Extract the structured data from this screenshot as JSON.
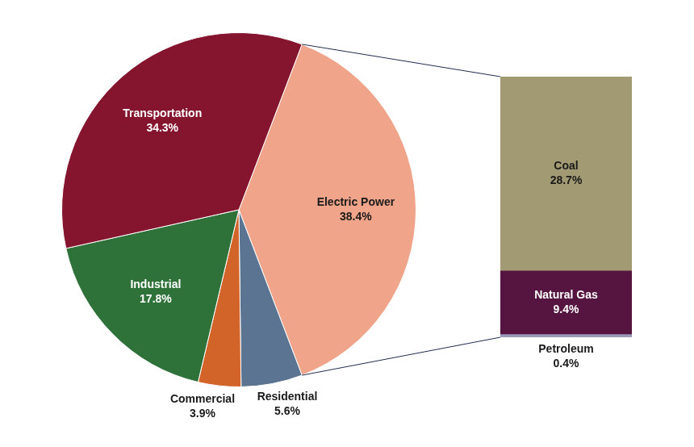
{
  "chart_data": [
    {
      "type": "pie",
      "categories": [
        "Electric Power",
        "Residential",
        "Commercial",
        "Industrial",
        "Transportation"
      ],
      "values": [
        38.4,
        5.6,
        3.9,
        17.8,
        34.3
      ],
      "value_labels": [
        "38.4%",
        "5.6%",
        "3.9%",
        "17.8%",
        "34.3%"
      ],
      "colors": [
        "#f0a48a",
        "#5b7491",
        "#d2642a",
        "#2f7239",
        "#85152e"
      ],
      "data_labels": true
    },
    {
      "type": "bar",
      "stacked": true,
      "series": [
        {
          "name": "Petroleum",
          "color": "#9a98b8",
          "values": [
            0.4
          ],
          "value_labels": [
            "0.4%"
          ]
        },
        {
          "name": "Natural Gas",
          "color": "#551540",
          "values": [
            9.4
          ],
          "value_labels": [
            "9.4%"
          ]
        },
        {
          "name": "Coal",
          "color": "#a19a73",
          "values": [
            28.7
          ],
          "value_labels": [
            "28.7%"
          ]
        }
      ],
      "ylim": [
        0,
        38.5
      ],
      "tick_labels": false,
      "grid": false,
      "data_labels": true
    }
  ]
}
